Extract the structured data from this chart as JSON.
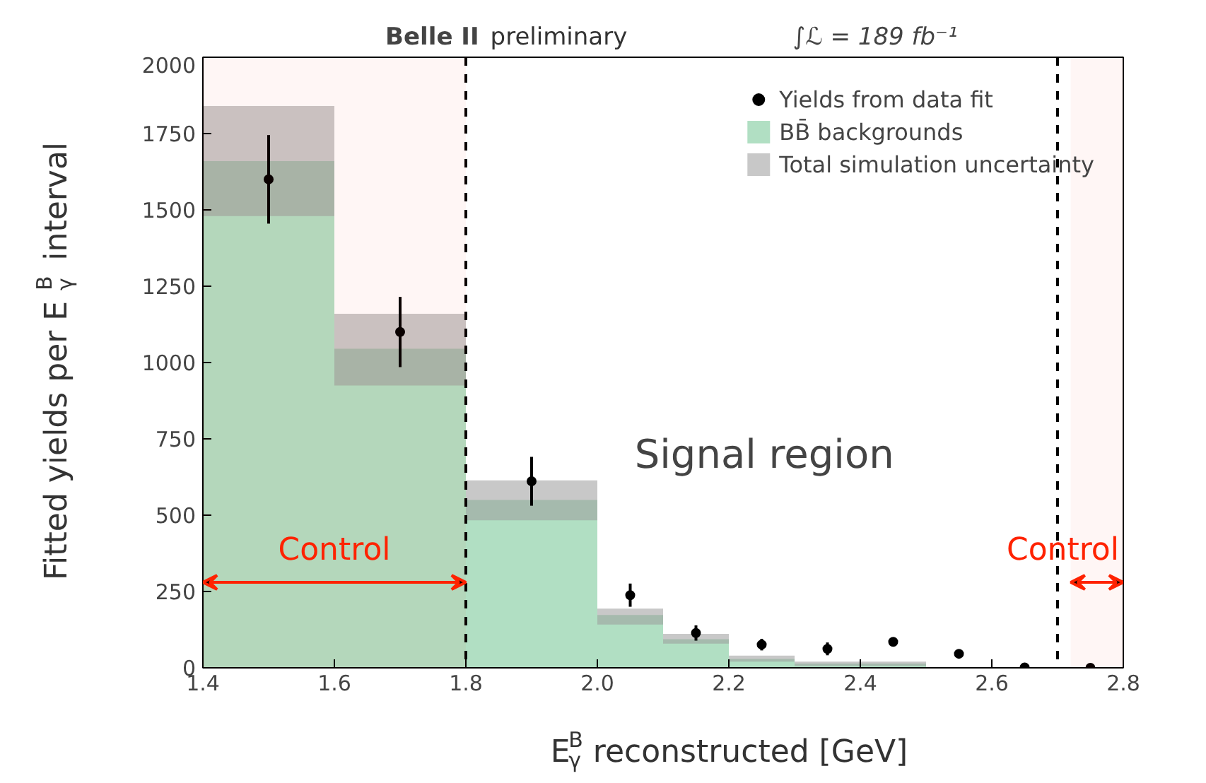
{
  "chart_data": {
    "type": "histogram",
    "title": "Belle II",
    "subtitle": "preliminary",
    "xlabel": "E$_{γ}$$^{B}$ reconstructed [GeV]",
    "ylabel": "Fitted yields per E$_{γ}$$^{B}$ interval",
    "bins": [
      1.4,
      1.6,
      1.8,
      2.0,
      2.1,
      2.2,
      2.3,
      2.4,
      2.5
    ],
    "series": [
      {
        "type": "histogram",
        "name": "BB̄ backgrounds",
        "color": "#a8dcbc",
        "values": [
          1660,
          1045,
          550,
          173,
          94,
          29,
          14,
          14
        ]
      },
      {
        "type": "histogram",
        "name": "Total simulation uncertainty",
        "color": "#9a9a9a",
        "base": [
          1480,
          925,
          483,
          142,
          79,
          20,
          6,
          6
        ],
        "values": [
          360,
          235,
          131,
          52,
          32,
          20,
          14,
          14
        ]
      },
      {
        "type": "scatter",
        "name": "Yields from data fit",
        "color": "#000000",
        "marker": "circle",
        "x": [
          1.5,
          1.7,
          1.9,
          2.05,
          2.15,
          2.25,
          2.35,
          2.45,
          2.55,
          2.65,
          2.75
        ],
        "values": [
          1600,
          1100,
          611,
          238,
          114,
          76,
          62,
          85,
          46,
          1,
          0
        ],
        "errors": [
          145,
          115,
          80,
          38,
          25,
          19,
          21,
          10,
          null,
          null,
          null
        ]
      }
    ],
    "xlim": [
      1.4,
      2.8
    ],
    "xticks": [
      1.4,
      1.6,
      1.8,
      {
        "value": 2.0,
        "label": "2.0"
      },
      2.2,
      2.4,
      2.6,
      2.8
    ],
    "ylim": [
      0,
      2000
    ],
    "yticks": [
      0,
      250,
      500,
      750,
      1000,
      1250,
      1500,
      1750,
      2000
    ],
    "ref_lines": [
      {
        "axis": "x",
        "value": 1.8,
        "line_style": "dashed",
        "color": "#000000"
      },
      {
        "axis": "x",
        "value": 2.7,
        "line_style": "dashed",
        "color": "#000000"
      }
    ],
    "bands": [
      {
        "axis": "x",
        "from": 1.4,
        "to": 1.8,
        "label": "Control",
        "color": "#ff2200"
      },
      {
        "axis": "x",
        "from": 2.72,
        "to": 2.8,
        "label": "Control",
        "color": "#ff2200"
      }
    ],
    "annotations": [
      "∫ℒ = 189 fb⁻¹",
      "Signal region"
    ],
    "legend": "top right",
    "grid": false
  }
}
